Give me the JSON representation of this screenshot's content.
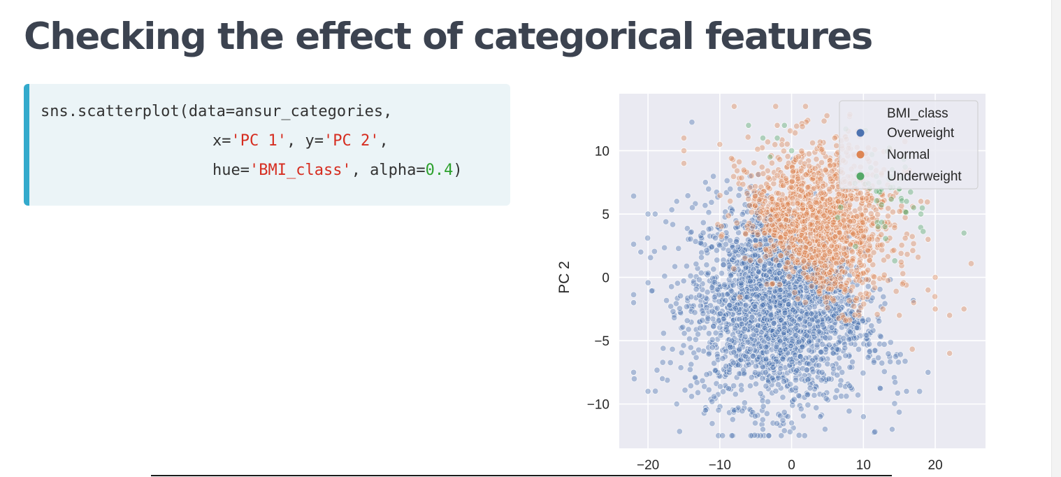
{
  "page": {
    "title": "Checking the effect of categorical features"
  },
  "code": {
    "language": "python",
    "line1": {
      "plain": "sns.scatterplot(data=ansur_categories,"
    },
    "line2": {
      "p1": "x=",
      "s1": "'PC 1'",
      "p2": ", y=",
      "s2": "'PC 2'",
      "p3": ","
    },
    "line3": {
      "p1": "hue=",
      "s1": "'BMI_class'",
      "p2": ", alpha=",
      "n1": "0.4",
      "p3": ")"
    }
  },
  "chart_data": {
    "type": "scatter",
    "title": "",
    "xlabel": "",
    "ylabel": "PC 2",
    "xlim": [
      -24,
      27
    ],
    "ylim": [
      -13.5,
      14.5
    ],
    "xticks": [
      -20,
      -10,
      0,
      10,
      20
    ],
    "yticks": [
      -10,
      -5,
      0,
      5,
      10
    ],
    "tick_labels_x": [
      "−20",
      "−10",
      "0",
      "10",
      "20"
    ],
    "tick_labels_y": [
      "−10",
      "−5",
      "0",
      "5",
      "10"
    ],
    "grid": true,
    "background": "#eaeaf2",
    "alpha": 0.4,
    "legend": {
      "title": "BMI_class",
      "position": "top-right"
    },
    "series": [
      {
        "name": "Overweight",
        "color": "#4c72b0",
        "cluster": {
          "center": [
            -2,
            -2
          ],
          "spread": [
            6,
            4
          ],
          "count": 2600
        },
        "points": [
          [
            -20,
            5
          ],
          [
            -19,
            5
          ],
          [
            -21,
            2
          ],
          [
            -22,
            -2
          ],
          [
            -22,
            -7.5
          ],
          [
            -20,
            -9
          ],
          [
            -18,
            -8
          ],
          [
            -16,
            -10
          ],
          [
            -12,
            -10.5
          ],
          [
            -8,
            -10.5
          ],
          [
            -4,
            -12
          ],
          [
            0,
            -11.5
          ],
          [
            4,
            -11
          ],
          [
            10,
            -11
          ],
          [
            14,
            -12
          ],
          [
            16,
            -9
          ],
          [
            19,
            -7.5
          ],
          [
            -16,
            6
          ],
          [
            -12,
            7.5
          ]
        ]
      },
      {
        "name": "Normal",
        "color": "#dd8452",
        "cluster": {
          "center": [
            4,
            4
          ],
          "spread": [
            5,
            3.2
          ],
          "count": 1500
        },
        "points": [
          [
            -8,
            13.5
          ],
          [
            -15,
            11
          ],
          [
            -15,
            10
          ],
          [
            -15,
            9
          ],
          [
            -10,
            10.5
          ],
          [
            -2,
            12
          ],
          [
            6,
            11
          ],
          [
            18,
            6
          ],
          [
            19,
            3
          ],
          [
            20,
            0
          ],
          [
            22,
            -3
          ],
          [
            24,
            -2.5
          ],
          [
            22,
            -6
          ],
          [
            20,
            -2.5
          ],
          [
            17,
            -2
          ],
          [
            15,
            -3
          ],
          [
            19,
            -1
          ]
        ]
      },
      {
        "name": "Underweight",
        "color": "#55a868",
        "cluster": {
          "center": [
            12,
            6
          ],
          "spread": [
            3,
            2
          ],
          "count": 45
        },
        "points": [
          [
            -6,
            12
          ],
          [
            -1,
            12
          ],
          [
            -2,
            11
          ],
          [
            -4,
            11
          ],
          [
            -3,
            9.5
          ],
          [
            0,
            10
          ],
          [
            14,
            8.5
          ],
          [
            16,
            6
          ],
          [
            17,
            5.5
          ],
          [
            18,
            5
          ],
          [
            24,
            3.5
          ],
          [
            13,
            4
          ],
          [
            15,
            7
          ]
        ]
      }
    ]
  }
}
